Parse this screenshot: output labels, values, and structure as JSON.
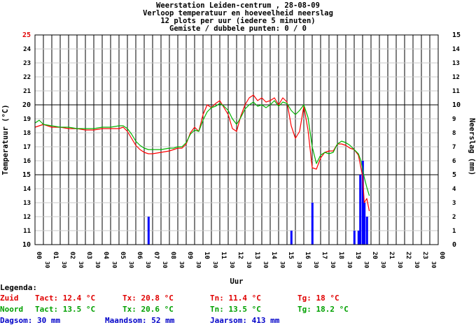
{
  "chart_data": {
    "type": "line",
    "title_lines": [
      "Weerstation Leiden-centrum , 28-08-09",
      "Verloop temperatuur en hoeveelheid neerslag",
      "12 plots per uur (iedere 5 minuten)",
      "Gemiste / dubbele punten: 0 / 0"
    ],
    "xlabel": "Uur",
    "ylabel_left": "Temperatuur (°C)",
    "ylabel_right": "Neerslag (mm)",
    "y_left_range": [
      10,
      25
    ],
    "y_right_range": [
      0,
      15
    ],
    "y_left_ticks": [
      "10",
      "11",
      "12",
      "13",
      "14",
      "15",
      "16",
      "17",
      "18",
      "19",
      "20",
      "21",
      "22",
      "23",
      "24",
      "25"
    ],
    "y_right_ticks": [
      "0",
      "1",
      "2",
      "3",
      "4",
      "5",
      "6",
      "7",
      "8",
      "9",
      "10",
      "11",
      "12",
      "13",
      "14",
      "15"
    ],
    "x_range": [
      0,
      24
    ],
    "x_hour_labels": [
      "00",
      "01",
      "02",
      "03",
      "04",
      "05",
      "06",
      "07",
      "08",
      "09",
      "10",
      "11",
      "12",
      "13",
      "14",
      "15",
      "16",
      "17",
      "18",
      "19",
      "20",
      "21",
      "22",
      "23",
      "00"
    ],
    "x_half_label": "30",
    "grid": true,
    "series": [
      {
        "name": "Zuid",
        "color": "#ff0000",
        "axis": "left",
        "x": [
          0,
          0.25,
          0.5,
          1,
          1.5,
          2,
          2.5,
          3,
          3.5,
          4,
          4.5,
          5,
          5.25,
          5.5,
          5.75,
          6,
          6.25,
          6.5,
          6.75,
          7,
          7.5,
          8,
          8.25,
          8.5,
          8.75,
          9,
          9.25,
          9.5,
          9.75,
          10,
          10.25,
          10.5,
          10.75,
          11,
          11.25,
          11.5,
          11.75,
          12,
          12.25,
          12.5,
          12.75,
          13,
          13.25,
          13.5,
          13.75,
          14,
          14.25,
          14.5,
          14.75,
          15,
          15.25,
          15.5,
          15.75,
          16,
          16.25,
          16.5,
          16.75,
          17,
          17.25,
          17.5,
          17.75,
          18,
          18.25,
          18.5,
          18.75,
          19,
          19.25,
          19.4,
          19.5,
          19.6,
          19.75,
          19.9
        ],
        "y": [
          18.4,
          18.5,
          18.6,
          18.4,
          18.4,
          18.3,
          18.3,
          18.2,
          18.2,
          18.3,
          18.3,
          18.3,
          18.4,
          18.1,
          17.6,
          17.1,
          16.8,
          16.6,
          16.5,
          16.5,
          16.6,
          16.7,
          16.8,
          16.9,
          16.9,
          17.2,
          18.0,
          18.4,
          18.1,
          19.3,
          20.0,
          19.8,
          20.1,
          20.3,
          19.8,
          19.3,
          18.3,
          18.1,
          19.2,
          20.0,
          20.5,
          20.7,
          20.3,
          20.5,
          20.2,
          20.3,
          20.5,
          20.0,
          20.5,
          20.2,
          18.5,
          17.6,
          18.1,
          19.9,
          18.2,
          15.5,
          15.4,
          16.2,
          16.6,
          16.7,
          16.7,
          17.2,
          17.2,
          17.1,
          16.9,
          16.8,
          16.4,
          15.5,
          14.9,
          13.0,
          13.3,
          12.4
        ]
      },
      {
        "name": "Noord",
        "color": "#00b400",
        "axis": "left",
        "x": [
          0,
          0.25,
          0.5,
          1,
          1.5,
          2,
          2.5,
          3,
          3.5,
          4,
          4.5,
          5,
          5.25,
          5.5,
          5.75,
          6,
          6.25,
          6.5,
          6.75,
          7,
          7.5,
          8,
          8.25,
          8.5,
          8.75,
          9,
          9.25,
          9.5,
          9.75,
          10,
          10.25,
          10.5,
          10.75,
          11,
          11.25,
          11.5,
          11.75,
          12,
          12.25,
          12.5,
          12.75,
          13,
          13.25,
          13.5,
          13.75,
          14,
          14.25,
          14.5,
          14.75,
          15,
          15.25,
          15.5,
          15.75,
          16,
          16.25,
          16.5,
          16.75,
          17,
          17.25,
          17.5,
          17.75,
          18,
          18.25,
          18.5,
          18.75,
          19,
          19.25,
          19.4,
          19.5,
          19.6,
          19.75,
          19.9
        ],
        "y": [
          18.7,
          18.9,
          18.6,
          18.5,
          18.4,
          18.4,
          18.3,
          18.3,
          18.3,
          18.4,
          18.4,
          18.5,
          18.5,
          18.3,
          17.9,
          17.4,
          17.1,
          16.9,
          16.8,
          16.8,
          16.8,
          16.9,
          16.9,
          17.0,
          17.0,
          17.3,
          17.9,
          18.2,
          18.1,
          18.9,
          19.5,
          19.8,
          19.9,
          20.1,
          19.9,
          19.6,
          19.0,
          18.6,
          19.1,
          19.7,
          20.0,
          20.2,
          19.9,
          20.0,
          19.8,
          20.0,
          20.3,
          19.9,
          20.2,
          20.1,
          19.6,
          19.3,
          19.6,
          20.0,
          19.1,
          17.0,
          15.8,
          16.4,
          16.6,
          16.5,
          16.6,
          17.2,
          17.4,
          17.3,
          17.1,
          16.8,
          16.5,
          16.0,
          15.4,
          14.8,
          14.1,
          13.5
        ]
      }
    ],
    "precipitation": {
      "name": "Neerslag",
      "color": "#0000ff",
      "axis": "right",
      "x": [
        6.75,
        15.25,
        16.5,
        19.0,
        19.25,
        19.35,
        19.5,
        19.6,
        19.75
      ],
      "values": [
        2,
        1,
        3,
        1,
        1,
        5,
        6,
        3,
        2
      ]
    }
  },
  "legend": {
    "heading": "Legenda:",
    "rows": [
      {
        "name": "Zuid",
        "tact": "Tact: 12.4 °C",
        "tx": "Tx: 20.8 °C",
        "tn": "Tn: 11.4 °C",
        "tg": "Tg: 18 °C",
        "color": "#e00000"
      },
      {
        "name": "Noord",
        "tact": "Tact: 13.5 °C",
        "tx": "Tx: 20.6 °C",
        "tn": "Tn: 13.5 °C",
        "tg": "Tg: 18.2 °C",
        "color": "#00a000"
      }
    ],
    "totals": {
      "dag": "Dagsom: 30 mm",
      "maand": "Maandsom: 52 mm",
      "jaar": "Jaarsom: 413 mm",
      "color": "#0000c8"
    }
  }
}
